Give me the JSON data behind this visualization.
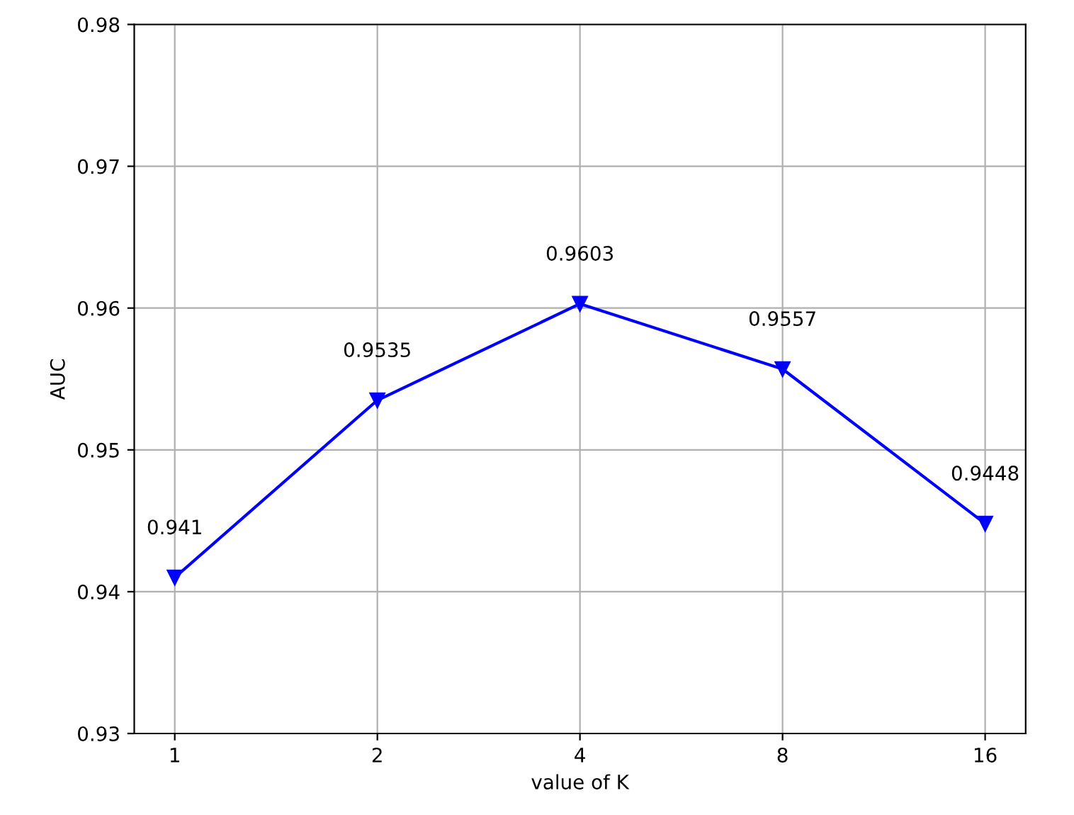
{
  "chart_data": {
    "type": "line",
    "xlabel": "value of K",
    "ylabel": "AUC",
    "categories": [
      "1",
      "2",
      "4",
      "8",
      "16"
    ],
    "series": [
      {
        "color": "#0000ff",
        "values": [
          0.941,
          0.9535,
          0.9603,
          0.9557,
          0.9448
        ]
      }
    ],
    "ylim": [
      0.93,
      0.98
    ],
    "yticks": [
      0.93,
      0.94,
      0.95,
      0.96,
      0.97,
      0.98
    ],
    "grid": true,
    "marker": "triangle",
    "line_style": "solid",
    "data_labels": true
  }
}
